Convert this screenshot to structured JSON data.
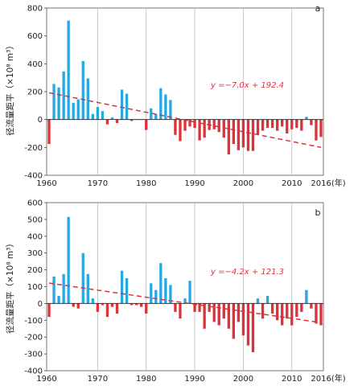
{
  "chart_data": [
    {
      "type": "bar",
      "panel_label": "a",
      "ylabel": "径流量距平（×10⁸ m³）",
      "ylim": [
        -400,
        800
      ],
      "yticks": [
        -400,
        -200,
        0,
        200,
        400,
        600,
        800
      ],
      "xticks": [
        1960,
        1970,
        1980,
        1990,
        2000,
        2010
      ],
      "last_xtick": "2016(年)",
      "grid": "vertical at decades",
      "positive_color": "#29a8e0",
      "negative_color": "#e0313a",
      "trend_label": "y =−7.0x + 192.4",
      "trend_line": {
        "x1": 1960,
        "y1": 192.4,
        "x2": 2016,
        "y2": -199.6
      },
      "x": [
        1960,
        1961,
        1962,
        1963,
        1964,
        1965,
        1966,
        1967,
        1968,
        1969,
        1970,
        1971,
        1972,
        1973,
        1974,
        1975,
        1976,
        1977,
        1978,
        1979,
        1980,
        1981,
        1982,
        1983,
        1984,
        1985,
        1986,
        1987,
        1988,
        1989,
        1990,
        1991,
        1992,
        1993,
        1994,
        1995,
        1996,
        1997,
        1998,
        1999,
        2000,
        2001,
        2002,
        2003,
        2004,
        2005,
        2006,
        2007,
        2008,
        2009,
        2010,
        2011,
        2012,
        2013,
        2014,
        2015,
        2016
      ],
      "values": [
        -175,
        255,
        230,
        345,
        710,
        120,
        145,
        420,
        295,
        40,
        90,
        60,
        -35,
        15,
        -25,
        215,
        185,
        -10,
        0,
        0,
        -75,
        80,
        40,
        225,
        180,
        140,
        -110,
        -155,
        -80,
        -50,
        -60,
        -150,
        -130,
        -75,
        -70,
        -90,
        -130,
        -250,
        -175,
        -220,
        -200,
        -225,
        -225,
        -110,
        -80,
        -60,
        -60,
        -80,
        -50,
        -100,
        -70,
        -60,
        -80,
        20,
        -40,
        -150,
        -125
      ]
    },
    {
      "type": "bar",
      "panel_label": "b",
      "ylabel": "径流量距平（×10⁸ m³）",
      "ylim": [
        -400,
        600
      ],
      "yticks": [
        -400,
        -300,
        -200,
        -100,
        0,
        100,
        200,
        300,
        400,
        500,
        600
      ],
      "xticks": [
        1960,
        1970,
        1980,
        1990,
        2000,
        2010
      ],
      "last_xtick": "2016(年)",
      "grid": "vertical at decades",
      "positive_color": "#29a8e0",
      "negative_color": "#e0313a",
      "trend_label": "y =−4.2x + 121.3",
      "trend_line": {
        "x1": 1960,
        "y1": 121.3,
        "x2": 2016,
        "y2": -113.9
      },
      "x": [
        1960,
        1961,
        1962,
        1963,
        1964,
        1965,
        1966,
        1967,
        1968,
        1969,
        1970,
        1971,
        1972,
        1973,
        1974,
        1975,
        1976,
        1977,
        1978,
        1979,
        1980,
        1981,
        1982,
        1983,
        1984,
        1985,
        1986,
        1987,
        1988,
        1989,
        1990,
        1991,
        1992,
        1993,
        1994,
        1995,
        1996,
        1997,
        1998,
        1999,
        2000,
        2001,
        2002,
        2003,
        2004,
        2005,
        2006,
        2007,
        2008,
        2009,
        2010,
        2011,
        2012,
        2013,
        2014,
        2015,
        2016
      ],
      "values": [
        -80,
        160,
        45,
        175,
        515,
        -20,
        -30,
        300,
        175,
        30,
        -50,
        -10,
        -80,
        -20,
        -60,
        195,
        150,
        -10,
        -10,
        -20,
        -60,
        120,
        80,
        240,
        150,
        110,
        -50,
        -90,
        30,
        135,
        -50,
        -50,
        -150,
        -50,
        -110,
        -130,
        -90,
        -150,
        -210,
        -110,
        -190,
        -250,
        -290,
        30,
        -90,
        45,
        -60,
        -100,
        -130,
        -90,
        -130,
        -80,
        -50,
        80,
        -30,
        -120,
        -130
      ]
    }
  ]
}
